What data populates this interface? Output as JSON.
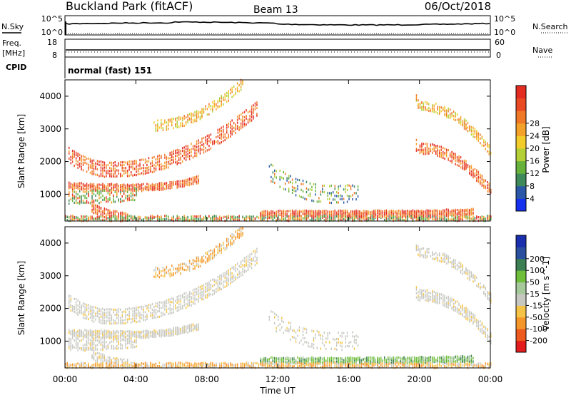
{
  "header": {
    "station": "Buckland Park (fitACF)",
    "beam": "Beam 13",
    "date": "06/Oct/2018"
  },
  "top_panels": {
    "nsky_label": "N.Sky",
    "nsky_top": "10^5",
    "nsky_bottom": "10^0",
    "nsearch_label": "N.Search",
    "nsearch_top": "10^5",
    "nsearch_bottom": "10^0",
    "freq_label": "Freq.",
    "freq_unit": "[MHz]",
    "freq_top": "18",
    "freq_bottom": "8",
    "nave_label": "Nave",
    "nave_top": "60",
    "nave_bottom": "0",
    "cpid_label": "CPID",
    "cpid_value": "normal (fast) 151"
  },
  "chart_data": [
    {
      "type": "heatmap",
      "name": "power",
      "ylabel": "Slant Range [km]",
      "colorbar_label": "Power [dB]",
      "colorbar_ticks": [
        "4",
        "8",
        "12",
        "16",
        "20",
        "24",
        "28"
      ],
      "colorbar_colors": [
        "#1530ee",
        "#2a57a8",
        "#3e8a5b",
        "#66b23a",
        "#b3d136",
        "#f2cc2a",
        "#f4a12a",
        "#f07826",
        "#ea4a23",
        "#e32d22"
      ],
      "xlim": [
        0,
        24
      ],
      "ylim": [
        180,
        4500
      ],
      "yticks": [
        "1000",
        "2000",
        "3000",
        "4000"
      ],
      "xticks": [
        "00:00",
        "04:00",
        "08:00",
        "12:00",
        "16:00",
        "20:00",
        "00:00"
      ],
      "features": [
        {
          "name": "band-a",
          "t0": 0.2,
          "t1": 10.8,
          "r_start": 2200,
          "r_min": 1750,
          "r_end": 3600,
          "t_min": 2.5,
          "thickness": 420,
          "density": 0.8,
          "palette": "hot"
        },
        {
          "name": "band-b",
          "t0": 0.2,
          "t1": 7.5,
          "r_start": 1250,
          "r_min": 1200,
          "r_end": 1450,
          "t_min": 4.0,
          "thickness": 180,
          "density": 0.75,
          "palette": "hot"
        },
        {
          "name": "band-c",
          "t0": 5.0,
          "t1": 10.0,
          "r_start": 3200,
          "r_min": 3100,
          "r_end": 4400,
          "t_min": 5.0,
          "thickness": 280,
          "density": 0.6,
          "palette": "warm"
        },
        {
          "name": "band-d",
          "t0": 0.2,
          "t1": 4.0,
          "r_start": 900,
          "r_min": 900,
          "r_end": 1000,
          "t_min": 0.2,
          "thickness": 350,
          "density": 0.6,
          "palette": "mixed"
        },
        {
          "name": "band-e",
          "t0": 1.5,
          "t1": 3.5,
          "r_start": 600,
          "r_min": 300,
          "r_end": 250,
          "t_min": 3.5,
          "thickness": 250,
          "density": 0.8,
          "palette": "hot"
        },
        {
          "name": "band-f",
          "t0": 11.5,
          "t1": 16.5,
          "r_start": 1700,
          "r_min": 1000,
          "r_end": 1000,
          "t_min": 15.0,
          "thickness": 500,
          "density": 0.5,
          "palette": "cool"
        },
        {
          "name": "band-g",
          "t0": 11.0,
          "t1": 23.0,
          "r_start": 400,
          "r_min": 400,
          "r_end": 450,
          "t_min": 16.0,
          "thickness": 160,
          "density": 0.8,
          "palette": "hot"
        },
        {
          "name": "band-h",
          "t0": 19.8,
          "t1": 24.0,
          "r_start": 2500,
          "r_min": 2400,
          "r_end": 1100,
          "t_min": 20.0,
          "thickness": 300,
          "density": 0.75,
          "palette": "hot"
        },
        {
          "name": "band-i",
          "t0": 19.8,
          "t1": 24.0,
          "r_start": 3900,
          "r_min": 3700,
          "r_end": 2300,
          "t_min": 20.0,
          "thickness": 250,
          "density": 0.6,
          "palette": "warm"
        },
        {
          "name": "band-j",
          "t0": 0.0,
          "t1": 24.0,
          "r_start": 260,
          "r_min": 260,
          "r_end": 260,
          "t_min": 12.0,
          "thickness": 120,
          "density": 0.5,
          "palette": "mixed"
        }
      ]
    },
    {
      "type": "heatmap",
      "name": "velocity",
      "ylabel": "Slant Range [km]",
      "colorbar_label": "Velocity [m s^-1]",
      "colorbar_ticks": [
        "-200",
        "-100",
        "-50",
        "-15",
        "15",
        "50",
        "100",
        "200"
      ],
      "colorbar_colors": [
        "#e31d1d",
        "#ee5a1e",
        "#f4962a",
        "#f5c446",
        "#c7c7c1",
        "#a5c99a",
        "#6fbf3a",
        "#3c7f52",
        "#2a4f9f",
        "#1a2fae"
      ],
      "xlim": [
        0,
        24
      ],
      "ylim": [
        180,
        4500
      ],
      "yticks": [
        "1000",
        "2000",
        "3000",
        "4000"
      ],
      "xticks": [
        "00:00",
        "04:00",
        "08:00",
        "12:00",
        "16:00",
        "20:00",
        "00:00"
      ],
      "xlabel": "Time UT",
      "features": [
        {
          "name": "band-a",
          "t0": 0.2,
          "t1": 10.8,
          "r_start": 2200,
          "r_min": 1750,
          "r_end": 3600,
          "t_min": 2.5,
          "thickness": 420,
          "density": 0.8,
          "palette": "grey"
        },
        {
          "name": "band-b",
          "t0": 0.2,
          "t1": 7.5,
          "r_start": 1250,
          "r_min": 1200,
          "r_end": 1450,
          "t_min": 4.0,
          "thickness": 180,
          "density": 0.8,
          "palette": "grey"
        },
        {
          "name": "band-c",
          "t0": 5.0,
          "t1": 10.0,
          "r_start": 3200,
          "r_min": 3100,
          "r_end": 4400,
          "t_min": 5.0,
          "thickness": 280,
          "density": 0.6,
          "palette": "orangegrey"
        },
        {
          "name": "band-d",
          "t0": 0.2,
          "t1": 4.0,
          "r_start": 900,
          "r_min": 900,
          "r_end": 1000,
          "t_min": 0.2,
          "thickness": 350,
          "density": 0.7,
          "palette": "grey"
        },
        {
          "name": "band-e",
          "t0": 1.5,
          "t1": 3.5,
          "r_start": 600,
          "r_min": 300,
          "r_end": 250,
          "t_min": 3.5,
          "thickness": 250,
          "density": 0.7,
          "palette": "grey"
        },
        {
          "name": "band-f",
          "t0": 11.5,
          "t1": 16.5,
          "r_start": 1700,
          "r_min": 1000,
          "r_end": 1000,
          "t_min": 15.0,
          "thickness": 500,
          "density": 0.45,
          "palette": "grey"
        },
        {
          "name": "band-g",
          "t0": 11.0,
          "t1": 23.0,
          "r_start": 400,
          "r_min": 400,
          "r_end": 450,
          "t_min": 16.0,
          "thickness": 160,
          "density": 0.8,
          "palette": "green"
        },
        {
          "name": "band-h",
          "t0": 19.8,
          "t1": 24.0,
          "r_start": 2500,
          "r_min": 2400,
          "r_end": 1100,
          "t_min": 20.0,
          "thickness": 300,
          "density": 0.8,
          "palette": "grey"
        },
        {
          "name": "band-i",
          "t0": 19.8,
          "t1": 24.0,
          "r_start": 3900,
          "r_min": 3700,
          "r_end": 2300,
          "t_min": 20.0,
          "thickness": 250,
          "density": 0.6,
          "palette": "grey"
        },
        {
          "name": "band-j",
          "t0": 0.0,
          "t1": 24.0,
          "r_start": 260,
          "r_min": 260,
          "r_end": 260,
          "t_min": 12.0,
          "thickness": 120,
          "density": 0.5,
          "palette": "orangegrey"
        }
      ]
    }
  ]
}
